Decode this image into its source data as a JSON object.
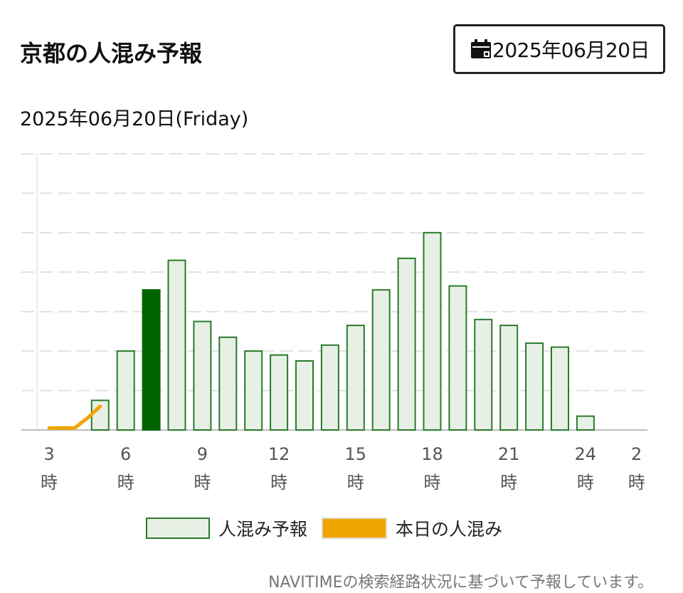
{
  "header": {
    "title": "京都の人混み予報"
  },
  "date_picker": {
    "icon": "calendar-icon",
    "label": "2025年06月20日"
  },
  "subtitle": "2025年06月20日(Friday)",
  "legend": {
    "prediction": "人混み予報",
    "today": "本日の人混み"
  },
  "footer": "NAVITIMEの検索経路状況に基づいて予報しています。",
  "colors": {
    "bar_fill": "#e7f0e5",
    "bar_stroke": "#2a7a2a",
    "current_bar": "#006400",
    "today_line": "#f0a500",
    "grid": "#e0e0e0"
  },
  "chart_data": {
    "type": "bar",
    "ylim": [
      0,
      7
    ],
    "grid": "horizontal-dashed",
    "legend_position": "bottom",
    "hours": [
      3,
      4,
      5,
      6,
      7,
      8,
      9,
      10,
      11,
      12,
      13,
      14,
      15,
      16,
      17,
      18,
      19,
      20,
      21,
      22,
      23,
      24,
      1,
      2
    ],
    "x_tick_labels": [
      {
        "hour": 3,
        "num": "3",
        "unit": "時"
      },
      {
        "hour": 6,
        "num": "6",
        "unit": "時"
      },
      {
        "hour": 9,
        "num": "9",
        "unit": "時"
      },
      {
        "hour": 12,
        "num": "12",
        "unit": "時"
      },
      {
        "hour": 15,
        "num": "15",
        "unit": "時"
      },
      {
        "hour": 18,
        "num": "18",
        "unit": "時"
      },
      {
        "hour": 21,
        "num": "21",
        "unit": "時"
      },
      {
        "hour": 24,
        "num": "24",
        "unit": "時"
      },
      {
        "hour": 2,
        "num": "2",
        "unit": "時"
      }
    ],
    "series": [
      {
        "name": "人混み予報",
        "values": [
          0,
          0,
          0.75,
          2.0,
          3.55,
          4.3,
          2.75,
          2.35,
          2.0,
          1.9,
          1.75,
          2.15,
          2.65,
          3.55,
          4.35,
          5.0,
          3.65,
          2.8,
          2.65,
          2.2,
          2.1,
          0.35,
          0,
          0
        ],
        "highlight_hour": 7
      },
      {
        "name": "本日の人混み",
        "type": "line",
        "points": [
          [
            3,
            0.05
          ],
          [
            4,
            0.05
          ],
          [
            4.5,
            0.3
          ],
          [
            5,
            0.6
          ]
        ]
      }
    ]
  }
}
